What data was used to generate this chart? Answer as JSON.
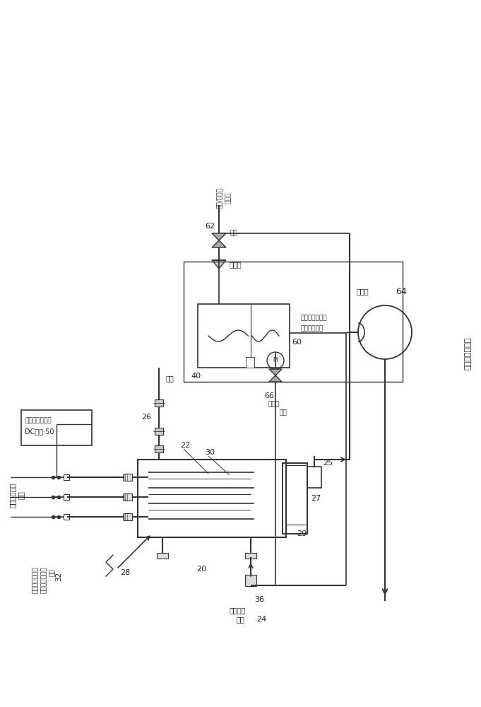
{
  "bg_color": "#ffffff",
  "labels": {
    "left_flow1": "经处理流出液",
    "left_flow2": "排放",
    "nozzle1": "用于高速排放到",
    "nozzle2": "反应器中的喷嘴",
    "nozzle3": "出口",
    "ref_32": "32",
    "dc1": "具有交替极性的",
    "dc2": "DC电源·50",
    "ref_20": "20",
    "ref_22": "22",
    "ref_24": "24",
    "ref_25": "25",
    "ref_26": "26",
    "ref_27": "27",
    "ref_28": "28",
    "ref_29": "29",
    "ref_30": "30",
    "ref_36": "36",
    "electrode40": "电极",
    "ref_40": "40",
    "ref_60": "60",
    "ref_62": "62",
    "ref_64": "64",
    "ref_66": "66",
    "gas1": "气体/氮气到",
    "gas2": "文氏管",
    "stop_valve": "止回阀",
    "rotate_valve": "旋阀",
    "venturi1": "用于气体注入液",
    "venturi2": "流中的文氏管",
    "boost": "增压泵",
    "bypass1": "旁通阀",
    "bypass2": "旁阀",
    "feed1": "原流入液",
    "feed2": "进入",
    "right_label": "电化学电池过程"
  }
}
